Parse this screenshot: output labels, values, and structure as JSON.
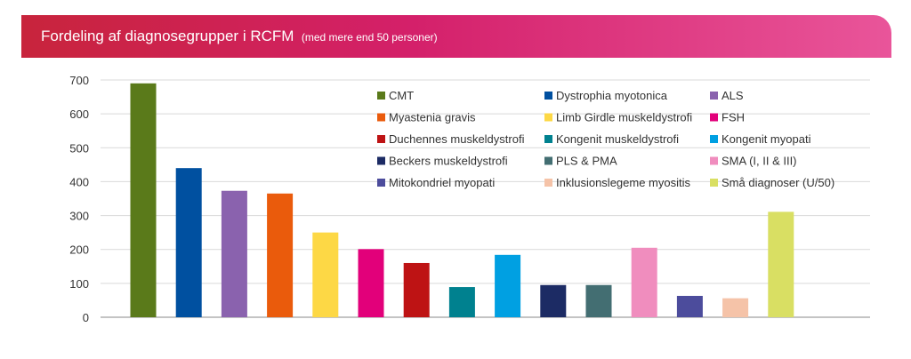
{
  "header": {
    "title": "Fordeling af diagnosegrupper i RCFM",
    "subtitle": "(med mere end 50 personer)"
  },
  "chart_data": {
    "type": "bar",
    "title": "Fordeling af diagnosegrupper i RCFM (med mere end 50 personer)",
    "xlabel": "",
    "ylabel": "",
    "ylim": [
      0,
      700
    ],
    "yticks": [
      0,
      100,
      200,
      300,
      400,
      500,
      600,
      700
    ],
    "grid": true,
    "legend_position": "top-right",
    "series": [
      {
        "name": "CMT",
        "value": 690,
        "color": "#5a7a1a"
      },
      {
        "name": "Dystrophia myotonica",
        "value": 440,
        "color": "#0050a0"
      },
      {
        "name": "ALS",
        "value": 373,
        "color": "#8a62ae"
      },
      {
        "name": "Myastenia gravis",
        "value": 365,
        "color": "#ea5b0c"
      },
      {
        "name": "Limb Girdle muskeldystrofi",
        "value": 250,
        "color": "#fdd845"
      },
      {
        "name": "FSH",
        "value": 201,
        "color": "#e2007a"
      },
      {
        "name": "Duchennes muskeldystrofi",
        "value": 160,
        "color": "#be1314"
      },
      {
        "name": "Kongenit muskeldystrofi",
        "value": 89,
        "color": "#00818f"
      },
      {
        "name": "Kongenit myopati",
        "value": 184,
        "color": "#00a0e2"
      },
      {
        "name": "Beckers muskeldystrofi",
        "value": 95,
        "color": "#1c2b64"
      },
      {
        "name": "PLS & PMA",
        "value": 95,
        "color": "#436e72"
      },
      {
        "name": "SMA  (I, II & III)",
        "value": 205,
        "color": "#f08dbe"
      },
      {
        "name": "Mitokondriel myopati",
        "value": 63,
        "color": "#4c4c9c"
      },
      {
        "name": "Inklusionslegeme myositis",
        "value": 56,
        "color": "#f5c3a8"
      },
      {
        "name": "Små diagnoser (U/50)",
        "value": 311,
        "color": "#d9df63"
      }
    ]
  }
}
